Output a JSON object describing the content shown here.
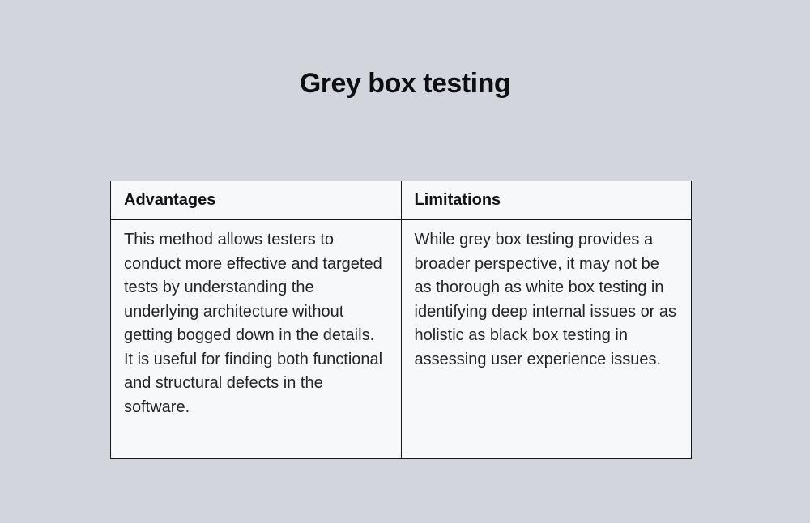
{
  "page": {
    "title": "Grey box testing",
    "background_color": "#d2d6dc",
    "table_background_color": "#f7f8f9",
    "border_color": "#14161a"
  },
  "table": {
    "columns": [
      {
        "label": "Advantages"
      },
      {
        "label": "Limitations"
      }
    ],
    "rows": [
      {
        "advantages": "This method allows testers to conduct more effective and targeted tests by understanding the underlying architecture without getting bogged down in the details. It is useful for finding both functional and structural defects in the software.",
        "limitations": "While grey box testing provides a broader perspective, it may not be as thorough as white box testing in identifying deep internal issues or as holistic as black box testing in assessing user experience issues."
      }
    ]
  }
}
